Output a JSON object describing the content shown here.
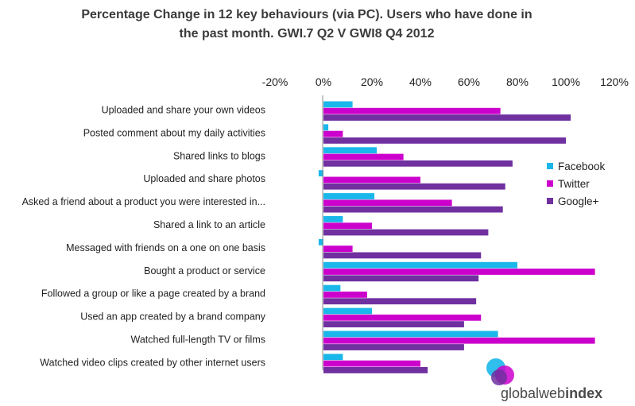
{
  "chart_data": {
    "type": "bar",
    "orientation": "horizontal",
    "title": [
      "Percentage Change in 12 key behaviours (via PC). Users who have done in",
      "the past month. GWI.7 Q2 V GWI8 Q4 2012"
    ],
    "xlim": [
      -20,
      120
    ],
    "xticks": [
      -20,
      0,
      20,
      40,
      60,
      80,
      100,
      120
    ],
    "xtick_labels": [
      "-20%",
      "0%",
      "20%",
      "40%",
      "60%",
      "80%",
      "100%",
      "120%"
    ],
    "grid": false,
    "legend_position": "right",
    "categories": [
      "Uploaded and share your own videos",
      "Posted comment about my daily activities",
      "Shared links to blogs",
      "Uploaded and share photos",
      "Asked a friend about a product you were interested in...",
      "Shared a link to an article",
      "Messaged with friends on a one on one basis",
      "Bought a product or service",
      "Followed a group or like a page created by a brand",
      "Used an app created by a brand company",
      "Watched full-length TV or films",
      "Watched video clips created by other internet users"
    ],
    "series": [
      {
        "name": "Facebook",
        "color": "#1ab7ea",
        "values": [
          12,
          2,
          22,
          -2,
          21,
          8,
          -2,
          80,
          7,
          20,
          72,
          8
        ]
      },
      {
        "name": "Twitter",
        "color": "#cc00cc",
        "values": [
          73,
          8,
          33,
          40,
          53,
          20,
          12,
          112,
          18,
          65,
          112,
          40
        ]
      },
      {
        "name": "Google+",
        "color": "#7030a0",
        "values": [
          102,
          100,
          78,
          75,
          74,
          68,
          65,
          64,
          63,
          58,
          58,
          43
        ]
      }
    ]
  },
  "branding": {
    "logo_prefix": "global",
    "logo_mid": "web",
    "logo_suffix": "index",
    "logo_colors": [
      "#1ab7ea",
      "#cc00cc",
      "#7030a0"
    ]
  }
}
